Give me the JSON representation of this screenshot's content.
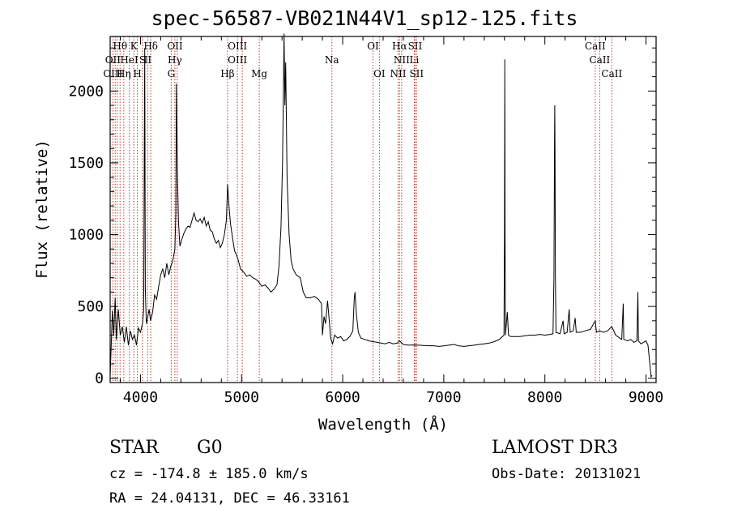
{
  "chart_data": {
    "type": "line",
    "title": "spec-56587-VB021N44V1_sp12-125.fits",
    "xlabel": "Wavelength (Å)",
    "ylabel": "Flux (relative)",
    "xlim": [
      3700,
      9100
    ],
    "ylim": [
      -30,
      2380
    ],
    "xticks": [
      4000,
      5000,
      6000,
      7000,
      8000,
      9000
    ],
    "yticks": [
      0,
      500,
      1000,
      1500,
      2000
    ],
    "grid": false,
    "series": [
      {
        "color": "#000000",
        "points": [
          [
            3700,
            20
          ],
          [
            3712,
            260
          ],
          [
            3722,
            470
          ],
          [
            3735,
            300
          ],
          [
            3750,
            560
          ],
          [
            3762,
            270
          ],
          [
            3780,
            480
          ],
          [
            3800,
            300
          ],
          [
            3820,
            360
          ],
          [
            3840,
            250
          ],
          [
            3860,
            360
          ],
          [
            3880,
            230
          ],
          [
            3900,
            330
          ],
          [
            3920,
            270
          ],
          [
            3940,
            300
          ],
          [
            3960,
            230
          ],
          [
            3980,
            350
          ],
          [
            4000,
            320
          ],
          [
            4020,
            380
          ],
          [
            4032,
            480
          ],
          [
            4042,
            2300
          ],
          [
            4048,
            620
          ],
          [
            4058,
            380
          ],
          [
            4070,
            420
          ],
          [
            4085,
            480
          ],
          [
            4100,
            400
          ],
          [
            4120,
            460
          ],
          [
            4140,
            580
          ],
          [
            4160,
            550
          ],
          [
            4180,
            640
          ],
          [
            4200,
            720
          ],
          [
            4220,
            760
          ],
          [
            4240,
            700
          ],
          [
            4260,
            800
          ],
          [
            4280,
            720
          ],
          [
            4300,
            780
          ],
          [
            4320,
            820
          ],
          [
            4340,
            900
          ],
          [
            4350,
            1150
          ],
          [
            4355,
            2050
          ],
          [
            4365,
            1450
          ],
          [
            4375,
            1100
          ],
          [
            4390,
            920
          ],
          [
            4410,
            970
          ],
          [
            4430,
            1010
          ],
          [
            4450,
            1040
          ],
          [
            4470,
            1060
          ],
          [
            4490,
            1050
          ],
          [
            4510,
            1100
          ],
          [
            4530,
            1150
          ],
          [
            4550,
            1100
          ],
          [
            4570,
            1090
          ],
          [
            4590,
            1110
          ],
          [
            4610,
            1080
          ],
          [
            4630,
            1120
          ],
          [
            4650,
            1060
          ],
          [
            4670,
            1090
          ],
          [
            4690,
            1030
          ],
          [
            4710,
            1020
          ],
          [
            4730,
            970
          ],
          [
            4750,
            940
          ],
          [
            4770,
            960
          ],
          [
            4790,
            910
          ],
          [
            4810,
            940
          ],
          [
            4830,
            1000
          ],
          [
            4850,
            1100
          ],
          [
            4862,
            1350
          ],
          [
            4875,
            1200
          ],
          [
            4890,
            1080
          ],
          [
            4910,
            980
          ],
          [
            4930,
            890
          ],
          [
            4960,
            840
          ],
          [
            4990,
            760
          ],
          [
            5020,
            740
          ],
          [
            5050,
            710
          ],
          [
            5080,
            720
          ],
          [
            5110,
            700
          ],
          [
            5140,
            690
          ],
          [
            5170,
            670
          ],
          [
            5200,
            640
          ],
          [
            5230,
            650
          ],
          [
            5260,
            630
          ],
          [
            5290,
            600
          ],
          [
            5320,
            620
          ],
          [
            5350,
            650
          ],
          [
            5370,
            780
          ],
          [
            5390,
            1050
          ],
          [
            5405,
            1500
          ],
          [
            5415,
            2100
          ],
          [
            5420,
            2400
          ],
          [
            5428,
            1900
          ],
          [
            5436,
            2200
          ],
          [
            5450,
            1400
          ],
          [
            5470,
            1000
          ],
          [
            5490,
            820
          ],
          [
            5510,
            760
          ],
          [
            5540,
            720
          ],
          [
            5580,
            700
          ],
          [
            5610,
            600
          ],
          [
            5640,
            560
          ],
          [
            5680,
            560
          ],
          [
            5720,
            570
          ],
          [
            5760,
            550
          ],
          [
            5790,
            520
          ],
          [
            5800,
            300
          ],
          [
            5815,
            430
          ],
          [
            5830,
            380
          ],
          [
            5850,
            540
          ],
          [
            5870,
            380
          ],
          [
            5880,
            280
          ],
          [
            5900,
            240
          ],
          [
            5920,
            300
          ],
          [
            5950,
            280
          ],
          [
            5980,
            290
          ],
          [
            6010,
            260
          ],
          [
            6040,
            270
          ],
          [
            6070,
            290
          ],
          [
            6100,
            330
          ],
          [
            6115,
            560
          ],
          [
            6122,
            600
          ],
          [
            6135,
            450
          ],
          [
            6155,
            320
          ],
          [
            6180,
            280
          ],
          [
            6220,
            270
          ],
          [
            6260,
            260
          ],
          [
            6300,
            255
          ],
          [
            6340,
            250
          ],
          [
            6380,
            245
          ],
          [
            6420,
            240
          ],
          [
            6460,
            250
          ],
          [
            6500,
            240
          ],
          [
            6540,
            245
          ],
          [
            6562,
            260
          ],
          [
            6600,
            235
          ],
          [
            6650,
            230
          ],
          [
            6700,
            232
          ],
          [
            6750,
            230
          ],
          [
            6800,
            228
          ],
          [
            6850,
            226
          ],
          [
            6900,
            226
          ],
          [
            6950,
            222
          ],
          [
            7000,
            225
          ],
          [
            7050,
            230
          ],
          [
            7100,
            235
          ],
          [
            7150,
            225
          ],
          [
            7200,
            222
          ],
          [
            7250,
            226
          ],
          [
            7300,
            230
          ],
          [
            7350,
            235
          ],
          [
            7400,
            240
          ],
          [
            7450,
            245
          ],
          [
            7500,
            255
          ],
          [
            7550,
            270
          ],
          [
            7580,
            290
          ],
          [
            7595,
            300
          ],
          [
            7600,
            1000
          ],
          [
            7603,
            2220
          ],
          [
            7606,
            1000
          ],
          [
            7610,
            300
          ],
          [
            7628,
            460
          ],
          [
            7640,
            300
          ],
          [
            7660,
            290
          ],
          [
            7700,
            290
          ],
          [
            7750,
            290
          ],
          [
            7800,
            295
          ],
          [
            7850,
            300
          ],
          [
            7900,
            300
          ],
          [
            7950,
            305
          ],
          [
            8000,
            300
          ],
          [
            8050,
            305
          ],
          [
            8080,
            310
          ],
          [
            8090,
            700
          ],
          [
            8095,
            1650
          ],
          [
            8098,
            1900
          ],
          [
            8100,
            1600
          ],
          [
            8104,
            700
          ],
          [
            8110,
            320
          ],
          [
            8150,
            310
          ],
          [
            8180,
            400
          ],
          [
            8190,
            310
          ],
          [
            8220,
            320
          ],
          [
            8240,
            480
          ],
          [
            8250,
            320
          ],
          [
            8280,
            330
          ],
          [
            8300,
            420
          ],
          [
            8310,
            320
          ],
          [
            8350,
            320
          ],
          [
            8400,
            330
          ],
          [
            8450,
            340
          ],
          [
            8498,
            400
          ],
          [
            8510,
            320
          ],
          [
            8540,
            330
          ],
          [
            8580,
            320
          ],
          [
            8620,
            330
          ],
          [
            8662,
            360
          ],
          [
            8700,
            300
          ],
          [
            8740,
            280
          ],
          [
            8760,
            270
          ],
          [
            8775,
            520
          ],
          [
            8780,
            270
          ],
          [
            8820,
            260
          ],
          [
            8850,
            270
          ],
          [
            8880,
            250
          ],
          [
            8910,
            260
          ],
          [
            8920,
            600
          ],
          [
            8925,
            260
          ],
          [
            8950,
            240
          ],
          [
            9000,
            260
          ],
          [
            9020,
            230
          ],
          [
            9050,
            10
          ],
          [
            9060,
            20
          ]
        ]
      }
    ],
    "annotations": [
      {
        "text": "Hθ",
        "x": 3798,
        "row": 0
      },
      {
        "text": "K",
        "x": 3934,
        "row": 0
      },
      {
        "text": "Hδ",
        "x": 4102,
        "row": 0
      },
      {
        "text": "OII",
        "x": 4341,
        "row": 0
      },
      {
        "text": "OIII",
        "x": 4959,
        "row": 0
      },
      {
        "text": "OI",
        "x": 6300,
        "row": 0
      },
      {
        "text": "Hα",
        "x": 6563,
        "row": 0
      },
      {
        "text": "SII",
        "x": 6716,
        "row": 0
      },
      {
        "text": "CaII",
        "x": 8498,
        "row": 0
      },
      {
        "text": "OII",
        "x": 3727,
        "row": 1
      },
      {
        "text": "HeI",
        "x": 3889,
        "row": 1
      },
      {
        "text": "S",
        "x": 4020,
        "row": 1
      },
      {
        "text": "II",
        "x": 4072,
        "row": 1
      },
      {
        "text": "Hγ",
        "x": 4340,
        "row": 1
      },
      {
        "text": "OIII",
        "x": 4959,
        "row": 1
      },
      {
        "text": "Na",
        "x": 5893,
        "row": 1
      },
      {
        "text": "NII",
        "x": 6583,
        "row": 1
      },
      {
        "text": "Li",
        "x": 6708,
        "row": 1
      },
      {
        "text": "CaII",
        "x": 8542,
        "row": 1
      },
      {
        "text": "OIII",
        "x": 3727,
        "row": 2
      },
      {
        "text": "Hη",
        "x": 3835,
        "row": 2
      },
      {
        "text": "H",
        "x": 3969,
        "row": 2
      },
      {
        "text": "G",
        "x": 4304,
        "row": 2
      },
      {
        "text": "Hβ",
        "x": 4861,
        "row": 2
      },
      {
        "text": "Mg",
        "x": 5175,
        "row": 2
      },
      {
        "text": "OI",
        "x": 6363,
        "row": 2
      },
      {
        "text": "NII",
        "x": 6548,
        "row": 2
      },
      {
        "text": "SII",
        "x": 6731,
        "row": 2
      },
      {
        "text": "CaII",
        "x": 8662,
        "row": 2
      }
    ],
    "line_markers": [
      3727,
      3750,
      3770,
      3798,
      3835,
      3889,
      3934,
      3969,
      4020,
      4072,
      4102,
      4304,
      4340,
      4363,
      4861,
      4959,
      5007,
      5175,
      5893,
      6300,
      6363,
      6548,
      6563,
      6583,
      6708,
      6716,
      6731,
      8498,
      8542,
      8662
    ]
  },
  "info": {
    "object_class": "STAR",
    "subclass": "G0",
    "survey": "LAMOST DR3",
    "redshift": "cz = -174.8 ± 185.0 km/s",
    "obs_date": "Obs-Date: 20131021",
    "coords": "RA =  24.04131, DEC =  46.33161"
  }
}
